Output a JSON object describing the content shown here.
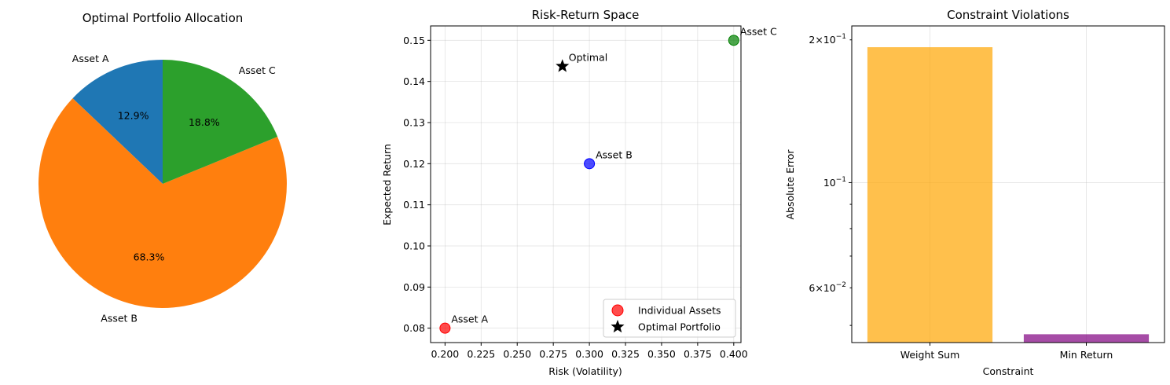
{
  "chart_data": [
    {
      "type": "pie",
      "title": "Optimal Portfolio Allocation",
      "labels": [
        "Asset A",
        "Asset B",
        "Asset C"
      ],
      "values": [
        12.9,
        68.3,
        18.8
      ],
      "pct_labels": [
        "12.9%",
        "68.3%",
        "18.8%"
      ],
      "colors": [
        "#1f77b4",
        "#ff7f0e",
        "#2ca02c"
      ],
      "start_angle": 90,
      "direction": "counterclockwise"
    },
    {
      "type": "scatter",
      "title": "Risk-Return Space",
      "xlabel": "Risk (Volatility)",
      "ylabel": "Expected Return",
      "xlim": [
        0.19,
        0.405
      ],
      "ylim": [
        0.0765,
        0.1535
      ],
      "xticks": [
        "0.200",
        "0.225",
        "0.250",
        "0.275",
        "0.300",
        "0.325",
        "0.350",
        "0.375",
        "0.400"
      ],
      "xtick_values": [
        0.2,
        0.225,
        0.25,
        0.275,
        0.3,
        0.325,
        0.35,
        0.375,
        0.4
      ],
      "yticks": [
        "0.08",
        "0.09",
        "0.10",
        "0.11",
        "0.12",
        "0.13",
        "0.14",
        "0.15"
      ],
      "ytick_values": [
        0.08,
        0.09,
        0.1,
        0.11,
        0.12,
        0.13,
        0.14,
        0.15
      ],
      "grid": true,
      "legend_position": "lower-right",
      "series": [
        {
          "name": "Individual Assets",
          "marker": "circle",
          "points": [
            {
              "x": 0.2,
              "y": 0.08,
              "label": "Asset A",
              "color": "#ff0000"
            },
            {
              "x": 0.3,
              "y": 0.12,
              "label": "Asset B",
              "color": "#0000ff"
            },
            {
              "x": 0.4,
              "y": 0.15,
              "label": "Asset C",
              "color": "#008000"
            }
          ]
        },
        {
          "name": "Optimal Portfolio",
          "marker": "star",
          "points": [
            {
              "x": 0.2813,
              "y": 0.1437,
              "label": "Optimal",
              "color": "#000000"
            }
          ]
        }
      ]
    },
    {
      "type": "bar",
      "title": "Constraint Violations",
      "xlabel": "Constraint",
      "ylabel": "Absolute Error",
      "yscale": "log",
      "ylim": [
        0.046,
        0.214
      ],
      "categories": [
        "Weight Sum",
        "Min Return"
      ],
      "values": [
        0.193,
        0.0479
      ],
      "colors": [
        "#ffa500",
        "#800080"
      ],
      "ytick_labels": [
        {
          "value": 0.2,
          "base": "2",
          "pre": "×10",
          "exp": "−1"
        },
        {
          "value": 0.1,
          "base": "10",
          "pre": "",
          "exp": "−1"
        },
        {
          "value": 0.06,
          "base": "6",
          "pre": "×10",
          "exp": "−2"
        }
      ],
      "grid": true
    }
  ]
}
